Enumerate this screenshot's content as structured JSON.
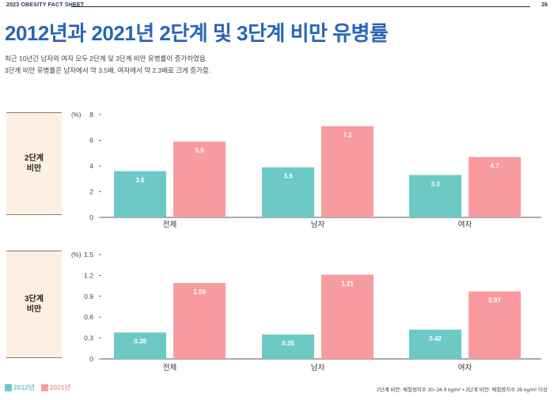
{
  "header": {
    "label": "2023 OBESITY FACT SHEET",
    "page_number": "26"
  },
  "title": "2012년과 2021년 2단계 및 3단계 비만 유병률",
  "description": [
    "최근 10년간 남자와 여자 모두 2단계 및 3단계 비만 유병률이 증가하였음.",
    "3단계 비만 유병률은 남자에서 약 3.5배, 여자에서 약 2.3배로 크게 증가함."
  ],
  "panels": [
    {
      "label_line1": "2단계",
      "label_line2": "비만"
    },
    {
      "label_line1": "3단계",
      "label_line2": "비만"
    }
  ],
  "legend": {
    "s2012": "2012년",
    "s2021": "2021년"
  },
  "footnote": "2단계 비만: 체질량지수 30~34.9 kg/m²  •  3단계 비만: 체질량지수 35 kg/m² 이상",
  "colors": {
    "s2012": "#6cc9c5",
    "s2021": "#f89ba0",
    "axis": "#555555"
  },
  "chart_data": [
    {
      "type": "bar",
      "categories": [
        "전체",
        "남자",
        "여자"
      ],
      "series": [
        {
          "name": "2012년",
          "values": [
            3.6,
            3.9,
            3.3
          ]
        },
        {
          "name": "2021년",
          "values": [
            5.9,
            7.1,
            4.7
          ]
        }
      ],
      "ylabel": "(%)",
      "ylim": [
        0,
        8
      ],
      "yticks": [
        "0",
        "2",
        "4",
        "6",
        "8"
      ],
      "data_labels": [
        [
          "3.6",
          "3.9",
          "3.3"
        ],
        [
          "5.9",
          "7.1",
          "4.7"
        ]
      ]
    },
    {
      "type": "bar",
      "categories": [
        "전체",
        "남자",
        "여자"
      ],
      "series": [
        {
          "name": "2012년",
          "values": [
            0.38,
            0.35,
            0.42
          ]
        },
        {
          "name": "2021년",
          "values": [
            1.09,
            1.21,
            0.97
          ]
        }
      ],
      "ylabel": "(%)",
      "ylim": [
        0,
        1.5
      ],
      "yticks": [
        "0",
        "0.3",
        "0.6",
        "0.9",
        "1.2",
        "1.5"
      ],
      "data_labels": [
        [
          "0.38",
          "0.35",
          "0.42"
        ],
        [
          "1.09",
          "1.21",
          "0.97"
        ]
      ]
    }
  ]
}
